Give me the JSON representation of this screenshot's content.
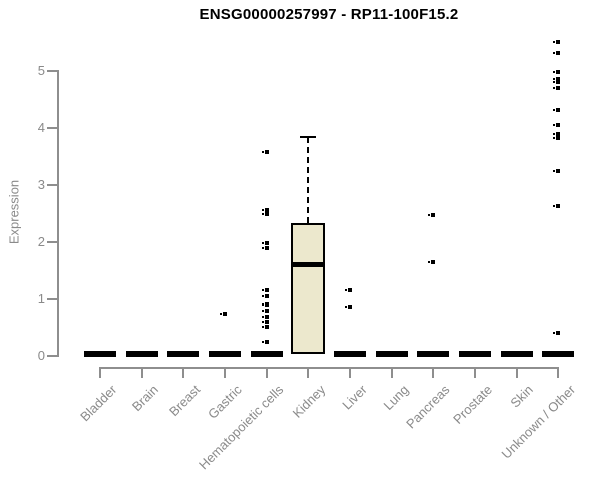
{
  "title": "ENSG00000257997 - RP11-100F15.2",
  "y_axis": {
    "label": "Expression"
  },
  "colors": {
    "box_fill": "#ECE8CD",
    "box_border": "#000000",
    "axis": "#8E8E8E",
    "axis_text": "#8A8A8A",
    "title_text": "#000000"
  },
  "chart_data": {
    "type": "boxplot",
    "title": "ENSG00000257997 - RP11-100F15.2",
    "xlabel": "",
    "ylabel": "Expression",
    "ylim": [
      0,
      5.6
    ],
    "yticks": [
      0,
      1,
      2,
      3,
      4,
      5
    ],
    "grid": false,
    "categories": [
      "Bladder",
      "Brain",
      "Breast",
      "Gastric",
      "Hematopoietic cells",
      "Kidney",
      "Liver",
      "Lung",
      "Pancreas",
      "Prostate",
      "Skin",
      "Unknown / Other"
    ],
    "groups": [
      {
        "label": "Bladder",
        "q1": 0,
        "median": 0,
        "q3": 0,
        "whisker_low": 0,
        "whisker_high": 0,
        "outliers": []
      },
      {
        "label": "Brain",
        "q1": 0,
        "median": 0,
        "q3": 0,
        "whisker_low": 0,
        "whisker_high": 0,
        "outliers": []
      },
      {
        "label": "Breast",
        "q1": 0,
        "median": 0,
        "q3": 0,
        "whisker_low": 0,
        "whisker_high": 0,
        "outliers": []
      },
      {
        "label": "Gastric",
        "q1": 0,
        "median": 0,
        "q3": 0,
        "whisker_low": 0,
        "whisker_high": 0,
        "outliers": [
          0.72
        ]
      },
      {
        "label": "Hematopoietic cells",
        "q1": 0,
        "median": 0,
        "q3": 0,
        "whisker_low": 0,
        "whisker_high": 0,
        "outliers": [
          3.56,
          2.55,
          2.47,
          1.97,
          1.88,
          1.14,
          1.04,
          0.9,
          0.87,
          0.77,
          0.67,
          0.58,
          0.49,
          0.22
        ]
      },
      {
        "label": "Kidney",
        "q1": 0.01,
        "median": 1.59,
        "q3": 2.31,
        "whisker_low": 0.01,
        "whisker_high": 3.83,
        "outliers": []
      },
      {
        "label": "Liver",
        "q1": 0,
        "median": 0,
        "q3": 0,
        "whisker_low": 0,
        "whisker_high": 0,
        "outliers": [
          1.14,
          0.85
        ]
      },
      {
        "label": "Lung",
        "q1": 0,
        "median": 0,
        "q3": 0,
        "whisker_low": 0,
        "whisker_high": 0,
        "outliers": []
      },
      {
        "label": "Pancreas",
        "q1": 0,
        "median": 0,
        "q3": 0,
        "whisker_low": 0,
        "whisker_high": 0,
        "outliers": [
          2.46,
          1.64
        ]
      },
      {
        "label": "Prostate",
        "q1": 0,
        "median": 0,
        "q3": 0,
        "whisker_low": 0,
        "whisker_high": 0,
        "outliers": []
      },
      {
        "label": "Skin",
        "q1": 0,
        "median": 0,
        "q3": 0,
        "whisker_low": 0,
        "whisker_high": 0,
        "outliers": []
      },
      {
        "label": "Unknown / Other",
        "q1": 0,
        "median": 0,
        "q3": 0,
        "whisker_low": 0,
        "whisker_high": 0,
        "outliers": [
          5.49,
          5.29,
          4.96,
          4.84,
          4.79,
          4.68,
          4.3,
          4.04,
          3.87,
          3.8,
          3.22,
          2.62,
          0.39
        ]
      }
    ]
  }
}
